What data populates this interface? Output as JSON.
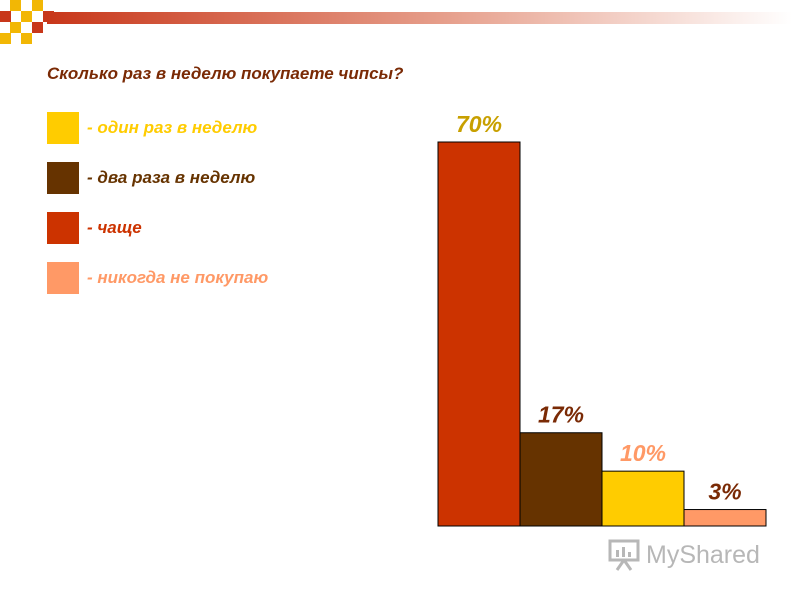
{
  "chart_data": {
    "type": "bar",
    "title": "Сколько раз в неделю покупаете чипсы?",
    "categories": [
      "- чаще",
      "- два раза в неделю",
      "- один раз в неделю",
      "- никогда не покупаю"
    ],
    "values": [
      70,
      17,
      10,
      3
    ],
    "data_labels": [
      "70%",
      "17%",
      "10%",
      "3%"
    ],
    "bar_colors": [
      "#cc3300",
      "#663300",
      "#ffcc00",
      "#ff9966"
    ],
    "label_colors": [
      "#c8a000",
      "#7a2a05",
      "#ff9966",
      "#7a2a05"
    ],
    "ylim": [
      0,
      70
    ],
    "grid": false
  },
  "legend": [
    {
      "label": "- один раз в неделю",
      "color": "#ffcc00",
      "text_color": "#ffcc00"
    },
    {
      "label": "- два раза в неделю",
      "color": "#663300",
      "text_color": "#663300"
    },
    {
      "label": "- чаще",
      "color": "#cc3300",
      "text_color": "#cc3300"
    },
    {
      "label": "- никогда не покупаю",
      "color": "#ff9966",
      "text_color": "#ff9966"
    }
  ],
  "watermark": {
    "text": "MyShared"
  }
}
